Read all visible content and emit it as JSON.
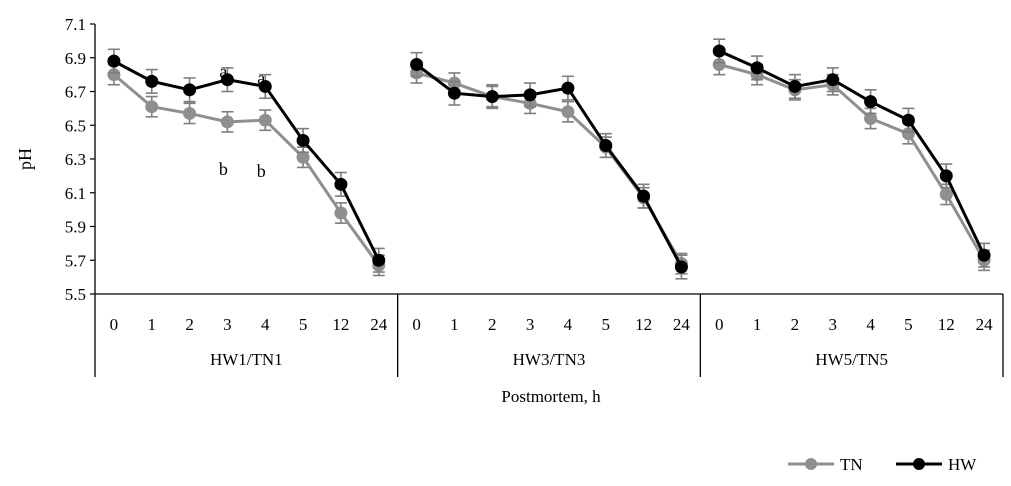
{
  "chart_data": {
    "type": "line",
    "ylabel": "pH",
    "xlabel": "Postmortem, h",
    "ylim": [
      5.5,
      7.1
    ],
    "yticks": [
      "5.5",
      "5.7",
      "5.9",
      "6.1",
      "6.3",
      "6.5",
      "6.7",
      "6.9",
      "7.1"
    ],
    "grid": false,
    "legend_position": "bottom-right",
    "categories": [
      "0",
      "1",
      "2",
      "3",
      "4",
      "5",
      "12",
      "24"
    ],
    "groups": [
      {
        "name": "HW1/TN1",
        "series": [
          {
            "name": "TN",
            "values": [
              6.8,
              6.61,
              6.57,
              6.52,
              6.53,
              6.31,
              5.98,
              5.67
            ],
            "error": [
              0.06,
              0.06,
              0.06,
              0.06,
              0.06,
              0.06,
              0.06,
              0.06
            ]
          },
          {
            "name": "HW",
            "values": [
              6.88,
              6.76,
              6.71,
              6.77,
              6.73,
              6.41,
              6.15,
              5.7
            ],
            "error": [
              0.07,
              0.07,
              0.07,
              0.07,
              0.07,
              0.07,
              0.07,
              0.07
            ]
          }
        ],
        "annotations": [
          {
            "text": "a",
            "category": "3",
            "y": 6.82
          },
          {
            "text": "a",
            "category": "4",
            "y": 6.78
          },
          {
            "text": "b",
            "category": "3",
            "y": 6.24
          },
          {
            "text": "b",
            "category": "4",
            "y": 6.23
          }
        ]
      },
      {
        "name": "HW3/TN3",
        "series": [
          {
            "name": "TN",
            "values": [
              6.81,
              6.75,
              6.67,
              6.63,
              6.58,
              6.37,
              6.07,
              5.68
            ],
            "error": [
              0.06,
              0.06,
              0.06,
              0.06,
              0.06,
              0.06,
              0.06,
              0.06
            ]
          },
          {
            "name": "HW",
            "values": [
              6.86,
              6.69,
              6.67,
              6.68,
              6.72,
              6.38,
              6.08,
              5.66
            ],
            "error": [
              0.07,
              0.07,
              0.07,
              0.07,
              0.07,
              0.07,
              0.07,
              0.07
            ]
          }
        ],
        "annotations": []
      },
      {
        "name": "HW5/TN5",
        "series": [
          {
            "name": "TN",
            "values": [
              6.86,
              6.8,
              6.71,
              6.74,
              6.54,
              6.45,
              6.09,
              5.7
            ],
            "error": [
              0.06,
              0.06,
              0.06,
              0.06,
              0.06,
              0.06,
              0.06,
              0.06
            ]
          },
          {
            "name": "HW",
            "values": [
              6.94,
              6.84,
              6.73,
              6.77,
              6.64,
              6.53,
              6.2,
              5.73
            ],
            "error": [
              0.07,
              0.07,
              0.07,
              0.07,
              0.07,
              0.07,
              0.07,
              0.07
            ]
          }
        ],
        "annotations": []
      }
    ],
    "legend": [
      {
        "name": "TN",
        "color": "#8f8f8f"
      },
      {
        "name": "HW",
        "color": "#000000"
      }
    ],
    "colors": {
      "TN": "#8f8f8f",
      "HW": "#000000",
      "error_bar": "#7f7f7f",
      "axis": "#000000"
    }
  }
}
